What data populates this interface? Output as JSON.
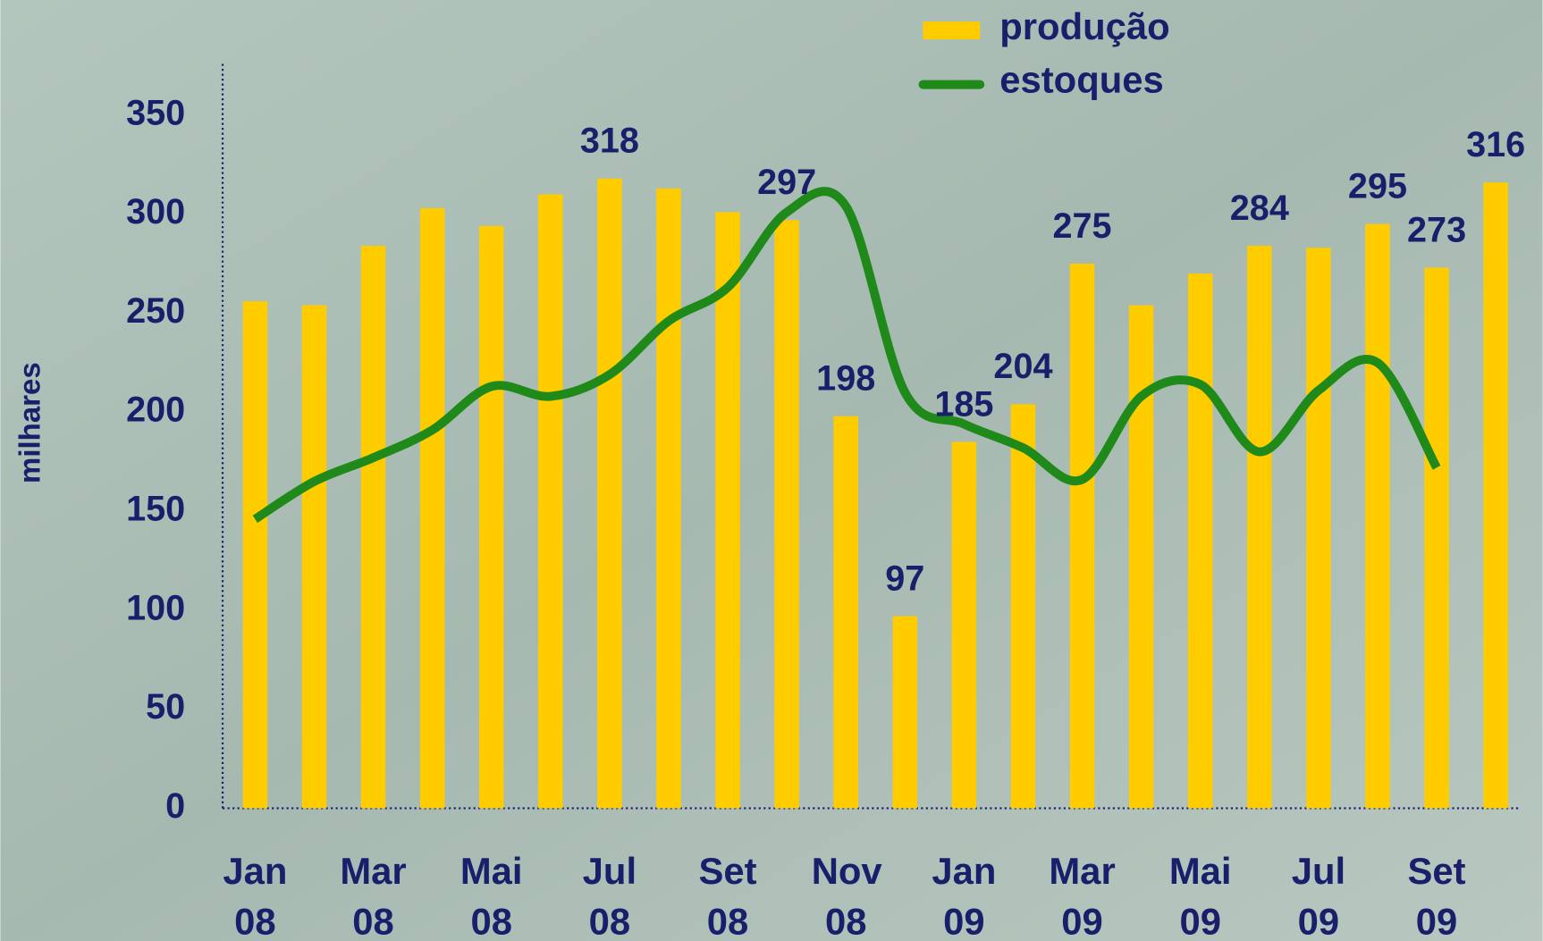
{
  "chart_data": {
    "type": "bar_line",
    "y_label": "milhares",
    "categories": [
      "Jan 08",
      null,
      "Mar 08",
      null,
      "Mai 08",
      null,
      "Jul 08",
      null,
      "Set 08",
      null,
      "Nov 08",
      null,
      "Jan 09",
      null,
      "Mar 09",
      null,
      "Mai 09",
      null,
      "Jul 09",
      null,
      "Set 09",
      null
    ],
    "series": [
      {
        "name": "produção",
        "color": "#ffcc00",
        "kind": "bar",
        "values": [
          256,
          254,
          284,
          303,
          294,
          310,
          318,
          313,
          301,
          297,
          198,
          97,
          185,
          204,
          275,
          254,
          270,
          284,
          283,
          295,
          273,
          316
        ],
        "value_labels": [
          null,
          null,
          null,
          null,
          null,
          null,
          "318",
          null,
          null,
          "297",
          "198",
          "97",
          "185",
          "204",
          "275",
          null,
          null,
          "284",
          null,
          "295",
          "273",
          "316"
        ]
      },
      {
        "name": "estoques",
        "color": "#1f8a1a",
        "kind": "line",
        "values": [
          146,
          165,
          177,
          191,
          213,
          208,
          219,
          246,
          263,
          301,
          304,
          210,
          194,
          182,
          166,
          208,
          214,
          180,
          211,
          225,
          172,
          null
        ]
      }
    ],
    "ylim": [
      0,
      375
    ],
    "yticks": [
      0,
      50,
      100,
      150,
      200,
      250,
      300,
      350
    ]
  }
}
